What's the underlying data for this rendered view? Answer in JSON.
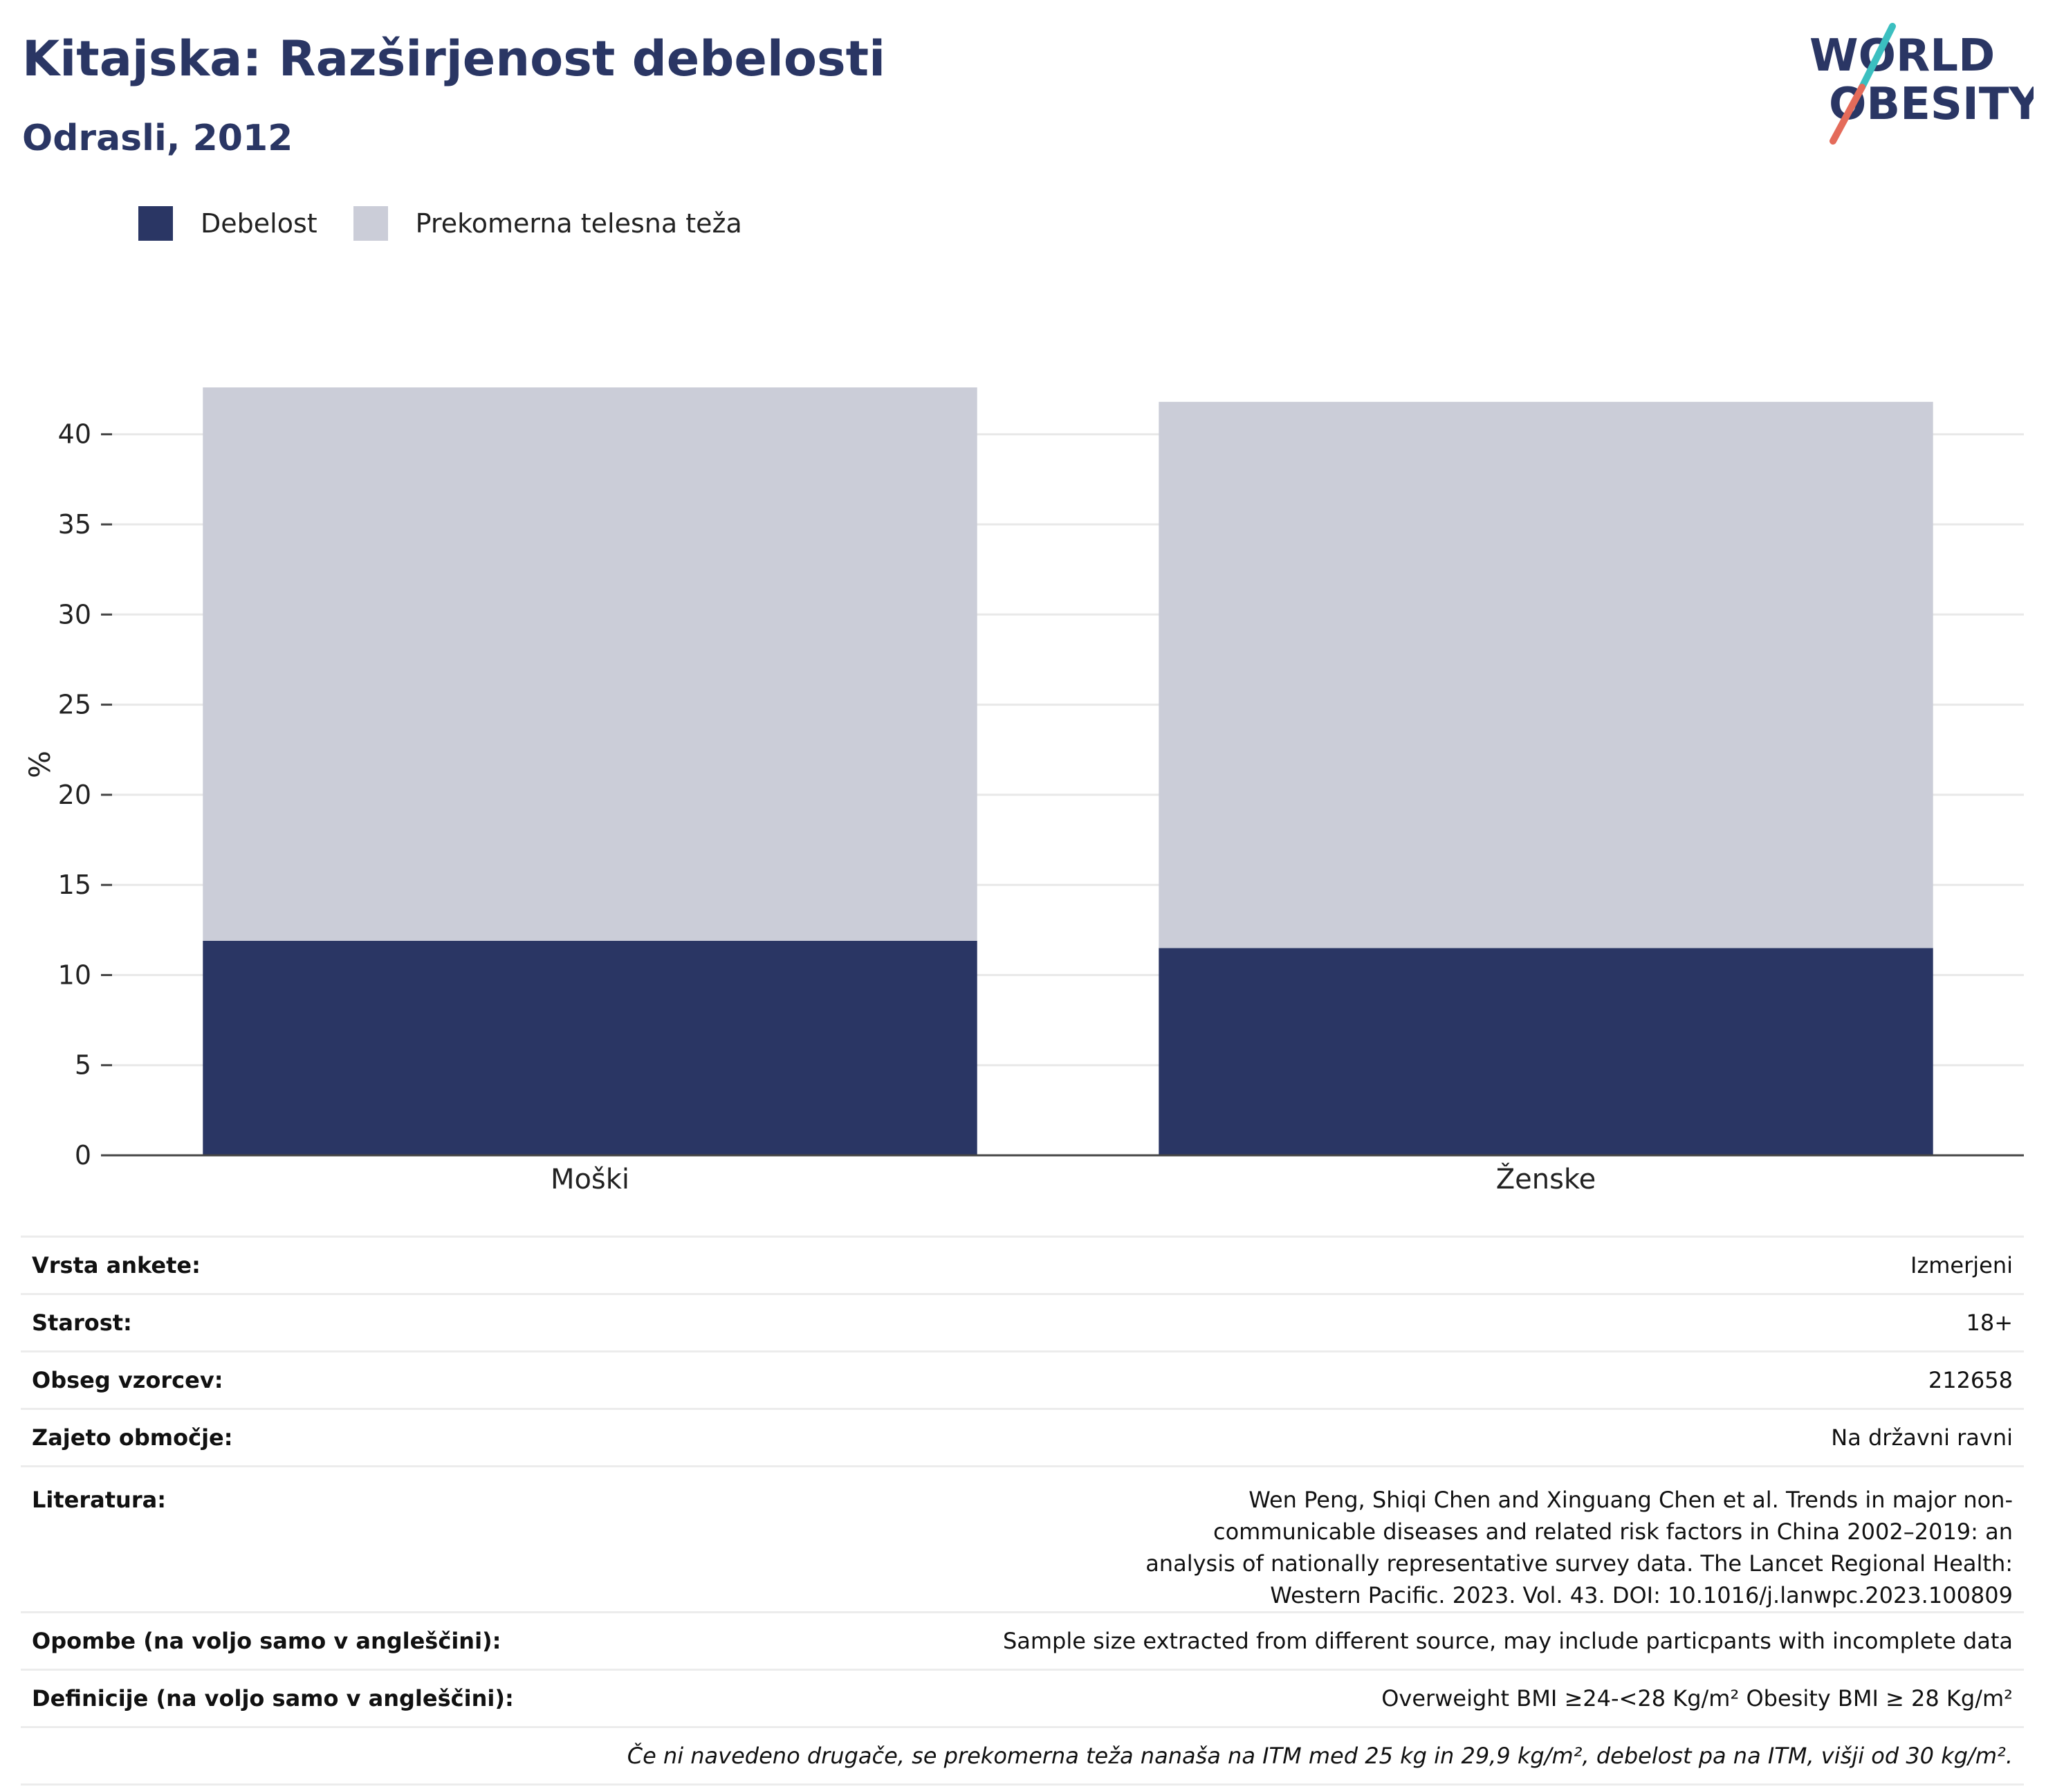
{
  "header": {
    "title": "Kitajska: Razširjenost debelosti",
    "subtitle": "Odrasli, 2012"
  },
  "logo": {
    "line1": "WORLD",
    "line2": "OBESITY",
    "colors": {
      "text": "#2a3664",
      "slash_teal": "#3bbfc0",
      "slash_coral": "#e46b5a"
    }
  },
  "chart_data": {
    "type": "bar",
    "stacked": true,
    "categories": [
      "Moški",
      "Ženske"
    ],
    "series": [
      {
        "name": "Debelost",
        "color": "#2a3664",
        "values": [
          11.9,
          11.5
        ]
      },
      {
        "name": "Prekomerna telesna teža",
        "color": "#cbcdd8",
        "values": [
          30.7,
          30.3
        ]
      }
    ],
    "ylabel": "%",
    "ylim": [
      0,
      42.6
    ],
    "yticks": [
      0,
      5,
      10,
      15,
      20,
      25,
      30,
      35,
      40
    ],
    "grid": true,
    "legend_position": "top-left"
  },
  "info": {
    "rows": [
      {
        "label": "Vrsta ankete:",
        "value": "Izmerjeni"
      },
      {
        "label": "Starost:",
        "value": "18+"
      },
      {
        "label": "Obseg vzorcev:",
        "value": "212658"
      },
      {
        "label": "Zajeto območje:",
        "value": "Na državni ravni"
      },
      {
        "label": "Literatura:",
        "value": "Wen Peng, Shiqi Chen and Xinguang Chen et al. Trends in major non-communicable diseases and related risk factors in China 2002–2019: an analysis of nationally representative survey data. The Lancet Regional Health: Western Pacific. 2023. Vol. 43. DOI: 10.1016/j.lanwpc.2023.100809"
      },
      {
        "label": "Opombe (na voljo samo v angleščini):",
        "value": "Sample size extracted from different source, may include particpants with incomplete data"
      },
      {
        "label": "Definicije (na voljo samo v angleščini):",
        "value": "Overweight BMI ≥24-<28 Kg/m² Obesity BMI ≥ 28 Kg/m²"
      }
    ],
    "footnote": "Če ni navedeno drugače, se prekomerna teža nanaša na ITM med 25 kg in 29,9 kg/m², debelost pa na ITM, višji od 30 kg/m²."
  }
}
